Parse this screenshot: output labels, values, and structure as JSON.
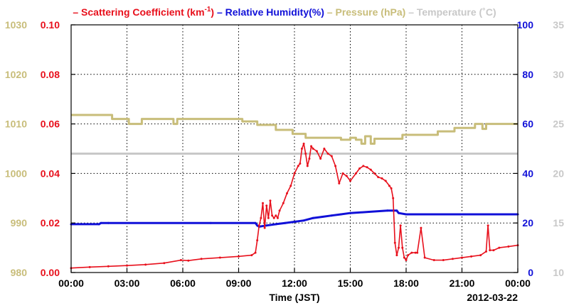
{
  "chart_data": {
    "type": "line",
    "xlabel": "Time (JST)",
    "date_label": "2012-03-22",
    "x_ticks": [
      "00:00",
      "03:00",
      "06:00",
      "09:00",
      "12:00",
      "15:00",
      "18:00",
      "21:00",
      "00:00"
    ],
    "xlim_hours": [
      0,
      24
    ],
    "grid": true,
    "legend": {
      "placement": "top",
      "items": [
        {
          "prefix": "– ",
          "text": "Scattering Coefficient (km",
          "sup": "-1",
          "suffix": ")",
          "color": "#e8101c"
        },
        {
          "prefix": "– ",
          "text": "Relative Humidity(%)",
          "sup": "",
          "suffix": "",
          "color": "#1010d8"
        },
        {
          "prefix": "– ",
          "text": "Pressure (hPa)",
          "sup": "",
          "suffix": "",
          "color": "#c8bd7a"
        },
        {
          "prefix": "– ",
          "text": "Temperature (˚C)",
          "sup": "",
          "suffix": "",
          "color": "#c8c8c8"
        }
      ]
    },
    "axes": {
      "scattering": {
        "ylim": [
          0.0,
          0.1
        ],
        "ticks": [
          "0.00",
          "0.02",
          "0.04",
          "0.06",
          "0.08",
          "0.10"
        ],
        "color": "#e8101c"
      },
      "pressure": {
        "ylim": [
          980,
          1030
        ],
        "ticks": [
          "980",
          "990",
          "1000",
          "1010",
          "1020",
          "1030"
        ],
        "color": "#c8bd7a"
      },
      "humidity": {
        "ylim": [
          0,
          100
        ],
        "ticks": [
          "0",
          "20",
          "40",
          "60",
          "80",
          "100"
        ],
        "color": "#1010d8"
      },
      "temperature": {
        "ylim": [
          10,
          35
        ],
        "ticks": [
          "10",
          "15",
          "20",
          "25",
          "30",
          "35"
        ],
        "color": "#c8c8c8"
      }
    },
    "series": [
      {
        "name": "Scattering Coefficient (km-1)",
        "axis": "scattering",
        "color": "#e8101c",
        "x": [
          0,
          1,
          2,
          3,
          4,
          5,
          5.9,
          6.3,
          7,
          8,
          9,
          9.7,
          9.9,
          10.0,
          10.1,
          10.2,
          10.3,
          10.4,
          10.5,
          10.6,
          10.7,
          10.8,
          10.9,
          11.0,
          11.1,
          11.2,
          11.4,
          11.6,
          11.8,
          12.0,
          12.2,
          12.3,
          12.4,
          12.5,
          12.6,
          12.7,
          12.8,
          12.9,
          13.0,
          13.2,
          13.4,
          13.6,
          13.8,
          14.0,
          14.2,
          14.4,
          14.6,
          14.8,
          15.0,
          15.3,
          15.5,
          15.7,
          15.9,
          16.1,
          16.3,
          16.5,
          16.7,
          16.9,
          17.1,
          17.2,
          17.3,
          17.4,
          17.5,
          17.6,
          17.7,
          17.8,
          17.9,
          18.0,
          18.1,
          18.3,
          18.5,
          18.6,
          18.8,
          19.0,
          19.5,
          20,
          20.5,
          21,
          21.5,
          22,
          22.3,
          22.4,
          22.5,
          22.7,
          23,
          23.5,
          24
        ],
        "values": [
          0.0018,
          0.0022,
          0.0025,
          0.0028,
          0.0032,
          0.0038,
          0.005,
          0.0048,
          0.0055,
          0.006,
          0.0065,
          0.007,
          0.008,
          0.013,
          0.019,
          0.022,
          0.028,
          0.018,
          0.027,
          0.022,
          0.029,
          0.023,
          0.022,
          0.023,
          0.022,
          0.025,
          0.028,
          0.032,
          0.035,
          0.04,
          0.043,
          0.044,
          0.05,
          0.052,
          0.048,
          0.043,
          0.046,
          0.051,
          0.05,
          0.049,
          0.046,
          0.05,
          0.048,
          0.047,
          0.043,
          0.036,
          0.04,
          0.039,
          0.037,
          0.04,
          0.042,
          0.043,
          0.0425,
          0.0415,
          0.04,
          0.0385,
          0.038,
          0.037,
          0.035,
          0.034,
          0.03,
          0.012,
          0.007,
          0.01,
          0.019,
          0.01,
          0.006,
          0.005,
          0.007,
          0.008,
          0.008,
          0.008,
          0.018,
          0.006,
          0.005,
          0.005,
          0.0055,
          0.006,
          0.0065,
          0.007,
          0.0085,
          0.019,
          0.009,
          0.009,
          0.01,
          0.0105,
          0.011
        ]
      },
      {
        "name": "Relative Humidity(%)",
        "axis": "humidity",
        "color": "#1010d8",
        "x": [
          0,
          1.5,
          1.6,
          2,
          7.5,
          9.9,
          10,
          10.1,
          10.5,
          11,
          11.5,
          12,
          12.5,
          13,
          13.5,
          14,
          14.5,
          15,
          16,
          17,
          17.5,
          17.6,
          18,
          24
        ],
        "values": [
          19.5,
          19.5,
          20,
          20,
          20,
          20,
          19,
          18.5,
          19,
          19.5,
          20,
          20.5,
          21,
          22,
          22.5,
          23,
          23.5,
          24,
          24.5,
          25,
          25,
          24,
          23.5,
          23.5
        ]
      },
      {
        "name": "Pressure (hPa)",
        "axis": "pressure",
        "color": "#c8bd7a",
        "x": [
          0,
          2.2,
          2.2,
          3.1,
          3.1,
          3.8,
          3.8,
          5.5,
          5.5,
          5.7,
          5.7,
          9.2,
          9.2,
          10,
          10,
          11,
          11,
          11.9,
          11.9,
          12.6,
          12.6,
          14.5,
          14.5,
          15.0,
          15.0,
          15.3,
          15.3,
          15.6,
          15.6,
          15.8,
          15.8,
          16.1,
          16.1,
          16.3,
          16.3,
          17.8,
          17.8,
          19.7,
          19.7,
          20.6,
          20.6,
          21.7,
          21.7,
          22.1,
          22.1,
          22.3,
          22.3,
          22.7,
          22.7,
          24
        ],
        "values": [
          1011.8,
          1011.8,
          1011.0,
          1011.0,
          1010.0,
          1010.0,
          1011.0,
          1011.0,
          1010.0,
          1010.0,
          1011.0,
          1011.0,
          1010.5,
          1010.5,
          1009.8,
          1009.8,
          1008.8,
          1008.8,
          1008.0,
          1008.0,
          1007.2,
          1007.2,
          1006.8,
          1006.8,
          1007.2,
          1007.2,
          1006.8,
          1006.8,
          1006.0,
          1006.0,
          1007.5,
          1007.5,
          1006.0,
          1006.0,
          1007.0,
          1007.0,
          1007.8,
          1007.8,
          1008.5,
          1008.5,
          1009.2,
          1009.2,
          1010.0,
          1010.0,
          1009.0,
          1009.0,
          1010.0,
          1010.0,
          1010.0,
          1010.0
        ]
      },
      {
        "name": "Temperature (˚C)",
        "axis": "temperature",
        "color": "#c8c8c8",
        "x": [
          0,
          24
        ],
        "values": [
          22.0,
          22.0
        ]
      }
    ]
  }
}
